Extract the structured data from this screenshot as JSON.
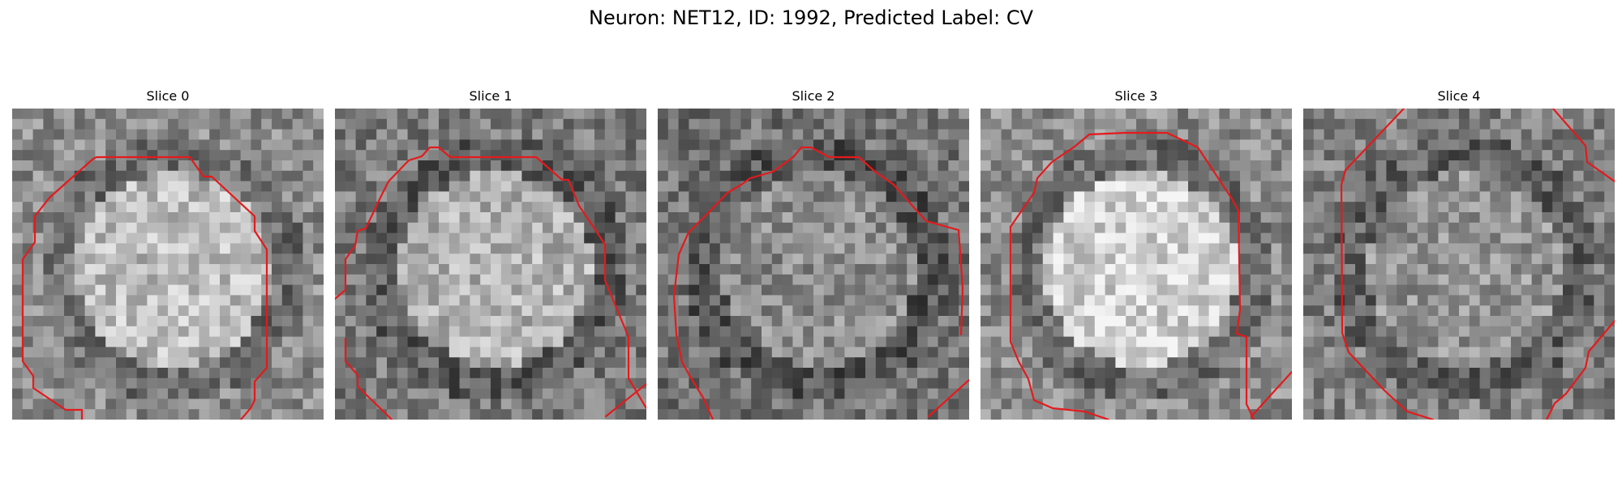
{
  "figure": {
    "title": "Neuron: NET12, ID: 1992, Predicted Label: CV"
  },
  "image_description": {
    "colormap": "grayscale",
    "contour_color": "#e41a1c",
    "grid_cells": 30
  },
  "panels": [
    {
      "title": "Slice 0",
      "seed": 11,
      "center_brightness": 0.74,
      "edge_brightness": 0.55
    },
    {
      "title": "Slice 1",
      "seed": 23,
      "center_brightness": 0.7,
      "edge_brightness": 0.48
    },
    {
      "title": "Slice 2",
      "seed": 37,
      "center_brightness": 0.55,
      "edge_brightness": 0.45
    },
    {
      "title": "Slice 3",
      "seed": 41,
      "center_brightness": 0.82,
      "edge_brightness": 0.55
    },
    {
      "title": "Slice 4",
      "seed": 59,
      "center_brightness": 0.58,
      "edge_brightness": 0.5
    }
  ]
}
